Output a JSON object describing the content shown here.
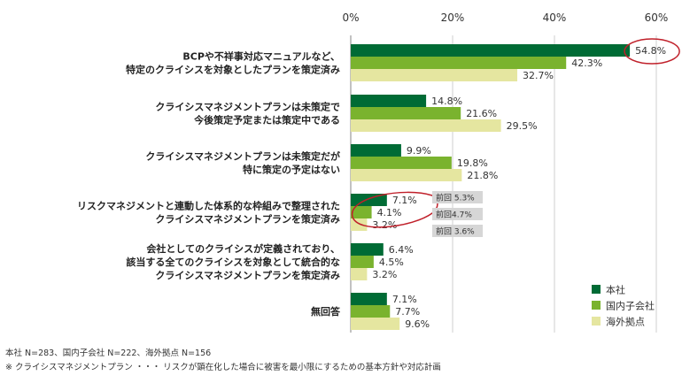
{
  "chart_data": {
    "type": "bar",
    "orientation": "horizontal",
    "categories": [
      [
        "BCPや不祥事対応マニュアルなど、",
        "特定のクライシスを対象としたプランを策定済み"
      ],
      [
        "クライシスマネジメントプランは未策定で",
        "今後策定予定または策定中である"
      ],
      [
        "クライシスマネジメントプランは未策定だが",
        "特に策定の予定はない"
      ],
      [
        "リスクマネジメントと連動した体系的な枠組みで整理された",
        "クライシスマネジメントプランを策定済み"
      ],
      [
        "会社としてのクライシスが定義されており、",
        "該当する全てのクライシスを対象として統合的な",
        "クライシスマネジメントプランを策定済み"
      ],
      [
        "無回答"
      ]
    ],
    "series": [
      {
        "name": "本社",
        "color": "#006b35",
        "values": [
          54.8,
          14.8,
          9.9,
          7.1,
          6.4,
          7.1
        ],
        "labels": [
          "54.8%",
          "14.8%",
          "9.9%",
          "7.1%",
          "6.4%",
          "7.1%"
        ]
      },
      {
        "name": "国内子会社",
        "color": "#7ab32e",
        "values": [
          42.3,
          21.6,
          19.8,
          4.1,
          4.5,
          7.7
        ],
        "labels": [
          "42.3%",
          "21.6%",
          "19.8%",
          "4.1%",
          "4.5%",
          "7.7%"
        ]
      },
      {
        "name": "海外拠点",
        "color": "#e5e6a0",
        "values": [
          32.7,
          29.5,
          21.8,
          3.2,
          3.2,
          9.6
        ],
        "labels": [
          "32.7%",
          "29.5%",
          "21.8%",
          "3.2%",
          "3.2%",
          "9.6%"
        ]
      }
    ],
    "xlim": [
      0,
      60
    ],
    "xticks": [
      "0%",
      "20%",
      "40%",
      "60%"
    ],
    "xtick_values": [
      0,
      20,
      40,
      60
    ],
    "grid": true,
    "legend_position": "bottom-right",
    "annotations": {
      "previous": [
        "前回 5.3%",
        "前回4.7%",
        "前回 3.6%"
      ],
      "highlight_color": "#c0202a"
    }
  },
  "footnotes": [
    "本社 N=283、国内子会社 N=222、海外拠点 N=156",
    "※ クライシスマネジメントプラン ・・・ リスクが顕在化した場合に被害を最小限にするための基本方針や対応計画"
  ]
}
